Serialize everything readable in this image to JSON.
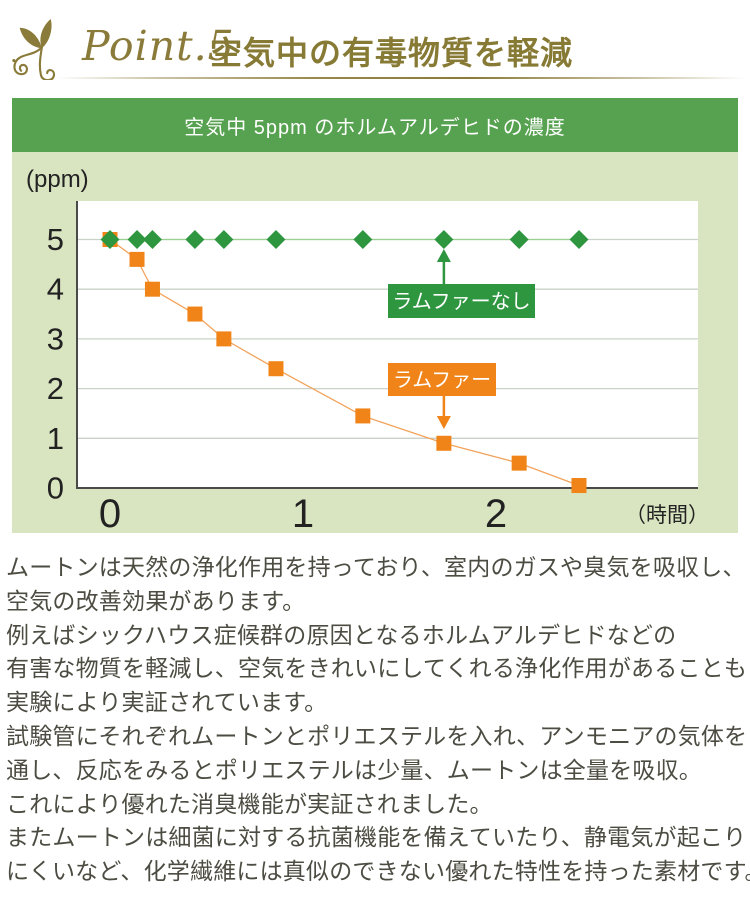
{
  "header": {
    "point_label": "Point.5",
    "title": "空気中の有毒物質を軽減",
    "accent_color": "#8a7b3a"
  },
  "chart_panel": {
    "title": "空気中 5ppm のホルムアルデヒドの濃度",
    "bg_color": "#d9e4c0",
    "bar_color": "#57a250",
    "y_unit": "(ppm)",
    "x_unit": "（時間）"
  },
  "chart_data": {
    "type": "line",
    "title": "空気中 5ppm のホルムアルデヒドの濃度",
    "xlabel": "（時間）",
    "ylabel": "(ppm)",
    "x": [
      0,
      0.14,
      0.22,
      0.44,
      0.59,
      0.86,
      1.31,
      1.73,
      2.12,
      2.43
    ],
    "series": [
      {
        "name": "ラムファーなし",
        "marker": "diamond",
        "color": "#2f9640",
        "line_color": "#9bcf93",
        "values": [
          5,
          5,
          5,
          5,
          5,
          5,
          5,
          5,
          5,
          5
        ]
      },
      {
        "name": "ラムファー",
        "marker": "square",
        "color": "#f08418",
        "line_color": "#f2a35c",
        "values": [
          5,
          4.6,
          4.0,
          3.5,
          3.0,
          2.4,
          1.45,
          0.9,
          0.5,
          0.05
        ]
      }
    ],
    "x_ticks": [
      0,
      1,
      2
    ],
    "y_ticks": [
      5,
      4,
      3,
      2,
      1,
      0
    ],
    "xlim": [
      -0.17,
      3.05
    ],
    "ylim": [
      0,
      5.8
    ],
    "grid": "horizontal",
    "annotations": [
      {
        "text": "ラムファーなし",
        "color": "#2f9640",
        "anchor_x": 1.73,
        "anchor_series": 0,
        "direction": "up"
      },
      {
        "text": "ラムファー",
        "color": "#f08418",
        "anchor_x": 1.73,
        "anchor_series": 1,
        "direction": "down"
      }
    ]
  },
  "paragraphs": [
    "ムートンは天然の浄化作用を持っており、室内のガスや臭気を吸収し、",
    "空気の改善効果があります。",
    "例えばシックハウス症候群の原因となるホルムアルデヒドなどの",
    "有害な物質を軽減し、空気をきれいにしてくれる浄化作用があることも",
    "実験により実証されています。",
    "試験管にそれぞれムートンとポリエステルを入れ、アンモニアの気体を",
    "通し、反応をみるとポリエステルは少量、ムートンは全量を吸収。",
    "これにより優れた消臭機能が実証されました。",
    "またムートンは細菌に対する抗菌機能を備えていたり、静電気が起こり",
    "にくいなど、化学繊維には真似のできない優れた特性を持った素材です。"
  ]
}
